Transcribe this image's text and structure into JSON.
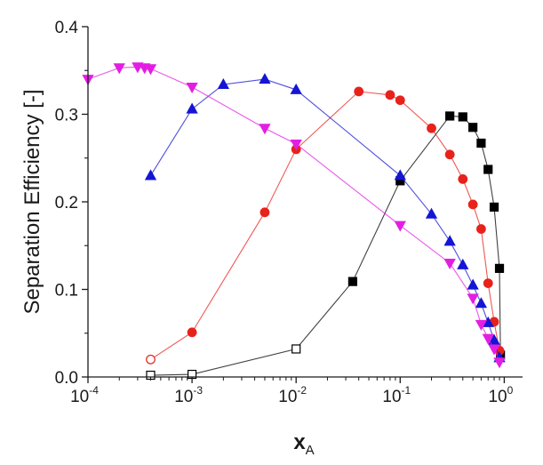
{
  "chart_data": {
    "type": "scatter",
    "title": "",
    "xscale": "log",
    "xlim": [
      0.0001,
      1.5
    ],
    "ylim": [
      0,
      0.4
    ],
    "xlabel": {
      "main": "x",
      "sub": "A"
    },
    "ylabel": "Separation Efficiency [-]",
    "xticks": [
      {
        "value": 0.0001,
        "base": "10",
        "exp": "-4"
      },
      {
        "value": 0.001,
        "base": "10",
        "exp": "-3"
      },
      {
        "value": 0.01,
        "base": "10",
        "exp": "-2"
      },
      {
        "value": 0.1,
        "base": "10",
        "exp": "-1"
      },
      {
        "value": 1,
        "base": "10",
        "exp": "0"
      }
    ],
    "yticks": [
      {
        "value": 0.0,
        "label": "0.0"
      },
      {
        "value": 0.1,
        "label": "0.1"
      },
      {
        "value": 0.2,
        "label": "0.2"
      },
      {
        "value": 0.3,
        "label": "0.3"
      },
      {
        "value": 0.4,
        "label": "0.4"
      }
    ],
    "series": [
      {
        "name": "black-squares",
        "color": "#000000",
        "marker": "square",
        "points": [
          {
            "x": 0.0004,
            "y": 0.002,
            "filled": false
          },
          {
            "x": 0.001,
            "y": 0.003,
            "filled": false
          },
          {
            "x": 0.01,
            "y": 0.032,
            "filled": false
          },
          {
            "x": 0.035,
            "y": 0.109,
            "filled": true
          },
          {
            "x": 0.1,
            "y": 0.224,
            "filled": true
          },
          {
            "x": 0.3,
            "y": 0.298,
            "filled": true
          },
          {
            "x": 0.4,
            "y": 0.297,
            "filled": true
          },
          {
            "x": 0.5,
            "y": 0.285,
            "filled": true
          },
          {
            "x": 0.6,
            "y": 0.267,
            "filled": true
          },
          {
            "x": 0.7,
            "y": 0.237,
            "filled": true
          },
          {
            "x": 0.8,
            "y": 0.194,
            "filled": true
          },
          {
            "x": 0.9,
            "y": 0.124,
            "filled": true
          },
          {
            "x": 0.92,
            "y": 0.025,
            "filled": true
          }
        ]
      },
      {
        "name": "red-circles",
        "color": "#e8221b",
        "marker": "circle",
        "points": [
          {
            "x": 0.0004,
            "y": 0.02,
            "filled": false
          },
          {
            "x": 0.001,
            "y": 0.051,
            "filled": true
          },
          {
            "x": 0.005,
            "y": 0.188,
            "filled": true
          },
          {
            "x": 0.01,
            "y": 0.26,
            "filled": true
          },
          {
            "x": 0.04,
            "y": 0.326,
            "filled": true
          },
          {
            "x": 0.08,
            "y": 0.322,
            "filled": true
          },
          {
            "x": 0.1,
            "y": 0.316,
            "filled": true
          },
          {
            "x": 0.2,
            "y": 0.284,
            "filled": true
          },
          {
            "x": 0.3,
            "y": 0.254,
            "filled": true
          },
          {
            "x": 0.4,
            "y": 0.226,
            "filled": true
          },
          {
            "x": 0.5,
            "y": 0.197,
            "filled": true
          },
          {
            "x": 0.6,
            "y": 0.169,
            "filled": true
          },
          {
            "x": 0.7,
            "y": 0.107,
            "filled": true
          },
          {
            "x": 0.8,
            "y": 0.063,
            "filled": true
          },
          {
            "x": 0.9,
            "y": 0.03,
            "filled": true
          }
        ]
      },
      {
        "name": "blue-triangles",
        "color": "#1515d4",
        "marker": "triangle-up",
        "points": [
          {
            "x": 0.0004,
            "y": 0.23,
            "filled": true
          },
          {
            "x": 0.001,
            "y": 0.306,
            "filled": true
          },
          {
            "x": 0.002,
            "y": 0.334,
            "filled": true
          },
          {
            "x": 0.005,
            "y": 0.34,
            "filled": true
          },
          {
            "x": 0.01,
            "y": 0.328,
            "filled": true
          },
          {
            "x": 0.1,
            "y": 0.23,
            "filled": true
          },
          {
            "x": 0.2,
            "y": 0.186,
            "filled": true
          },
          {
            "x": 0.3,
            "y": 0.155,
            "filled": true
          },
          {
            "x": 0.4,
            "y": 0.128,
            "filled": true
          },
          {
            "x": 0.5,
            "y": 0.105,
            "filled": true
          },
          {
            "x": 0.6,
            "y": 0.084,
            "filled": true
          },
          {
            "x": 0.7,
            "y": 0.062,
            "filled": true
          },
          {
            "x": 0.8,
            "y": 0.042,
            "filled": true
          },
          {
            "x": 0.9,
            "y": 0.022,
            "filled": true
          }
        ]
      },
      {
        "name": "magenta-triangles",
        "color": "#e31ee3",
        "marker": "triangle-down",
        "points": [
          {
            "x": 0.0001,
            "y": 0.34,
            "filled": true
          },
          {
            "x": 0.0002,
            "y": 0.353,
            "filled": true
          },
          {
            "x": 0.0003,
            "y": 0.354,
            "filled": true
          },
          {
            "x": 0.00035,
            "y": 0.353,
            "filled": true
          },
          {
            "x": 0.0004,
            "y": 0.352,
            "filled": true
          },
          {
            "x": 0.001,
            "y": 0.331,
            "filled": true
          },
          {
            "x": 0.005,
            "y": 0.284,
            "filled": true
          },
          {
            "x": 0.01,
            "y": 0.266,
            "filled": true
          },
          {
            "x": 0.1,
            "y": 0.173,
            "filled": true
          },
          {
            "x": 0.3,
            "y": 0.13,
            "filled": true
          },
          {
            "x": 0.5,
            "y": 0.09,
            "filled": true
          },
          {
            "x": 0.6,
            "y": 0.06,
            "filled": true
          },
          {
            "x": 0.7,
            "y": 0.044,
            "filled": true
          },
          {
            "x": 0.8,
            "y": 0.032,
            "filled": true
          },
          {
            "x": 0.9,
            "y": 0.017,
            "filled": true
          }
        ]
      }
    ]
  }
}
